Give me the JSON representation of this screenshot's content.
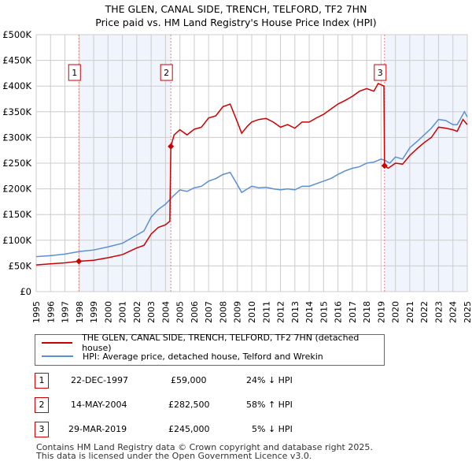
{
  "chart_data": {
    "type": "line",
    "title": "THE GLEN, CANAL SIDE, TRENCH, TELFORD, TF2 7HN",
    "subtitle": "Price paid vs. HM Land Registry's House Price Index (HPI)",
    "xlim": [
      1995,
      2025
    ],
    "ylim": [
      0,
      500000
    ],
    "x_ticks": [
      "1995",
      "1996",
      "1997",
      "1998",
      "1999",
      "2000",
      "2001",
      "2002",
      "2003",
      "2004",
      "2005",
      "2006",
      "2007",
      "2008",
      "2009",
      "2010",
      "2011",
      "2012",
      "2013",
      "2014",
      "2015",
      "2016",
      "2017",
      "2018",
      "2019",
      "2020",
      "2021",
      "2022",
      "2023",
      "2024",
      "2025"
    ],
    "y_ticks": [
      {
        "v": 0,
        "label": "£0"
      },
      {
        "v": 50000,
        "label": "£50K"
      },
      {
        "v": 100000,
        "label": "£100K"
      },
      {
        "v": 150000,
        "label": "£150K"
      },
      {
        "v": 200000,
        "label": "£200K"
      },
      {
        "v": 250000,
        "label": "£250K"
      },
      {
        "v": 300000,
        "label": "£300K"
      },
      {
        "v": 350000,
        "label": "£350K"
      },
      {
        "v": 400000,
        "label": "£400K"
      },
      {
        "v": 450000,
        "label": "£450K"
      },
      {
        "v": 500000,
        "label": "£500K"
      }
    ],
    "grid": true,
    "series": [
      {
        "name": "THE GLEN, CANAL SIDE, TRENCH, TELFORD, TF2 7HN (detached house)",
        "color": "#cc0000",
        "x": [
          1995,
          1996,
          1997,
          1997.97,
          1999,
          2000,
          2001,
          2002,
          2002.5,
          2003,
          2003.5,
          2004,
          2004.3,
          2004.37,
          2004.6,
          2005,
          2005.5,
          2006,
          2006.5,
          2007,
          2007.5,
          2008,
          2008.5,
          2009,
          2009.3,
          2009.7,
          2010,
          2010.5,
          2011,
          2011.5,
          2012,
          2012.5,
          2013,
          2013.5,
          2014,
          2014.5,
          2015,
          2015.5,
          2016,
          2016.5,
          2017,
          2017.5,
          2018,
          2018.5,
          2018.8,
          2019.2,
          2019.24,
          2019.5,
          2020,
          2020.5,
          2021,
          2021.5,
          2022,
          2022.5,
          2023,
          2023.5,
          2024,
          2024.3,
          2024.7,
          2025
        ],
        "values": [
          52000,
          54000,
          56000,
          59000,
          61000,
          66000,
          72000,
          85000,
          90000,
          112000,
          125000,
          130000,
          137000,
          282500,
          305000,
          315000,
          305000,
          316000,
          320000,
          338000,
          342000,
          360000,
          365000,
          330000,
          308000,
          322000,
          330000,
          335000,
          337000,
          330000,
          320000,
          325000,
          318000,
          330000,
          330000,
          338000,
          345000,
          355000,
          365000,
          372000,
          380000,
          390000,
          395000,
          390000,
          405000,
          400000,
          245000,
          240000,
          250000,
          248000,
          265000,
          278000,
          290000,
          300000,
          320000,
          318000,
          315000,
          312000,
          335000,
          325000
        ]
      },
      {
        "name": "HPI: Average price, detached house, Telford and Wrekin",
        "color": "#5b8fd4",
        "x": [
          1995,
          1996,
          1997,
          1998,
          1999,
          2000,
          2001,
          2002,
          2002.5,
          2003,
          2003.5,
          2004,
          2004.5,
          2005,
          2005.5,
          2006,
          2006.5,
          2007,
          2007.5,
          2008,
          2008.5,
          2009,
          2009.3,
          2009.7,
          2010,
          2010.5,
          2011,
          2011.5,
          2012,
          2012.5,
          2013,
          2013.5,
          2014,
          2014.5,
          2015,
          2015.5,
          2016,
          2016.5,
          2017,
          2017.5,
          2018,
          2018.5,
          2019,
          2019.3,
          2019.6,
          2020,
          2020.5,
          2021,
          2021.5,
          2022,
          2022.5,
          2023,
          2023.5,
          2024,
          2024.3,
          2024.8,
          2025
        ],
        "values": [
          68000,
          70000,
          73000,
          78000,
          81000,
          87000,
          94000,
          110000,
          118000,
          145000,
          160000,
          170000,
          185000,
          198000,
          195000,
          202000,
          205000,
          215000,
          220000,
          228000,
          232000,
          208000,
          193000,
          200000,
          205000,
          202000,
          203000,
          200000,
          198000,
          200000,
          198000,
          205000,
          205000,
          210000,
          215000,
          220000,
          228000,
          235000,
          240000,
          243000,
          250000,
          252000,
          258000,
          255000,
          250000,
          262000,
          258000,
          280000,
          292000,
          305000,
          318000,
          335000,
          333000,
          325000,
          325000,
          350000,
          340000
        ]
      }
    ],
    "sales": [
      {
        "id": "1",
        "x": 1997.97,
        "value": 59000
      },
      {
        "id": "2",
        "x": 2004.37,
        "value": 282500
      },
      {
        "id": "3",
        "x": 2019.24,
        "value": 245000
      }
    ],
    "shaded": [
      [
        1997.97,
        2004.37
      ],
      [
        2019.24,
        2025
      ]
    ]
  },
  "legend": [
    {
      "label": "THE GLEN, CANAL SIDE, TRENCH, TELFORD, TF2 7HN (detached house)",
      "color": "#cc0000"
    },
    {
      "label": "HPI: Average price, detached house, Telford and Wrekin",
      "color": "#5b8fd4"
    }
  ],
  "table": [
    {
      "num": "1",
      "date": "22-DEC-1997",
      "price": "£59,000",
      "hpi": "24% ↓ HPI"
    },
    {
      "num": "2",
      "date": "14-MAY-2004",
      "price": "£282,500",
      "hpi": "58% ↑ HPI"
    },
    {
      "num": "3",
      "date": "29-MAR-2019",
      "price": "£245,000",
      "hpi": "5% ↓ HPI"
    }
  ],
  "footer": [
    "Contains HM Land Registry data © Crown copyright and database right 2025.",
    "This data is licensed under the Open Government Licence v3.0."
  ]
}
